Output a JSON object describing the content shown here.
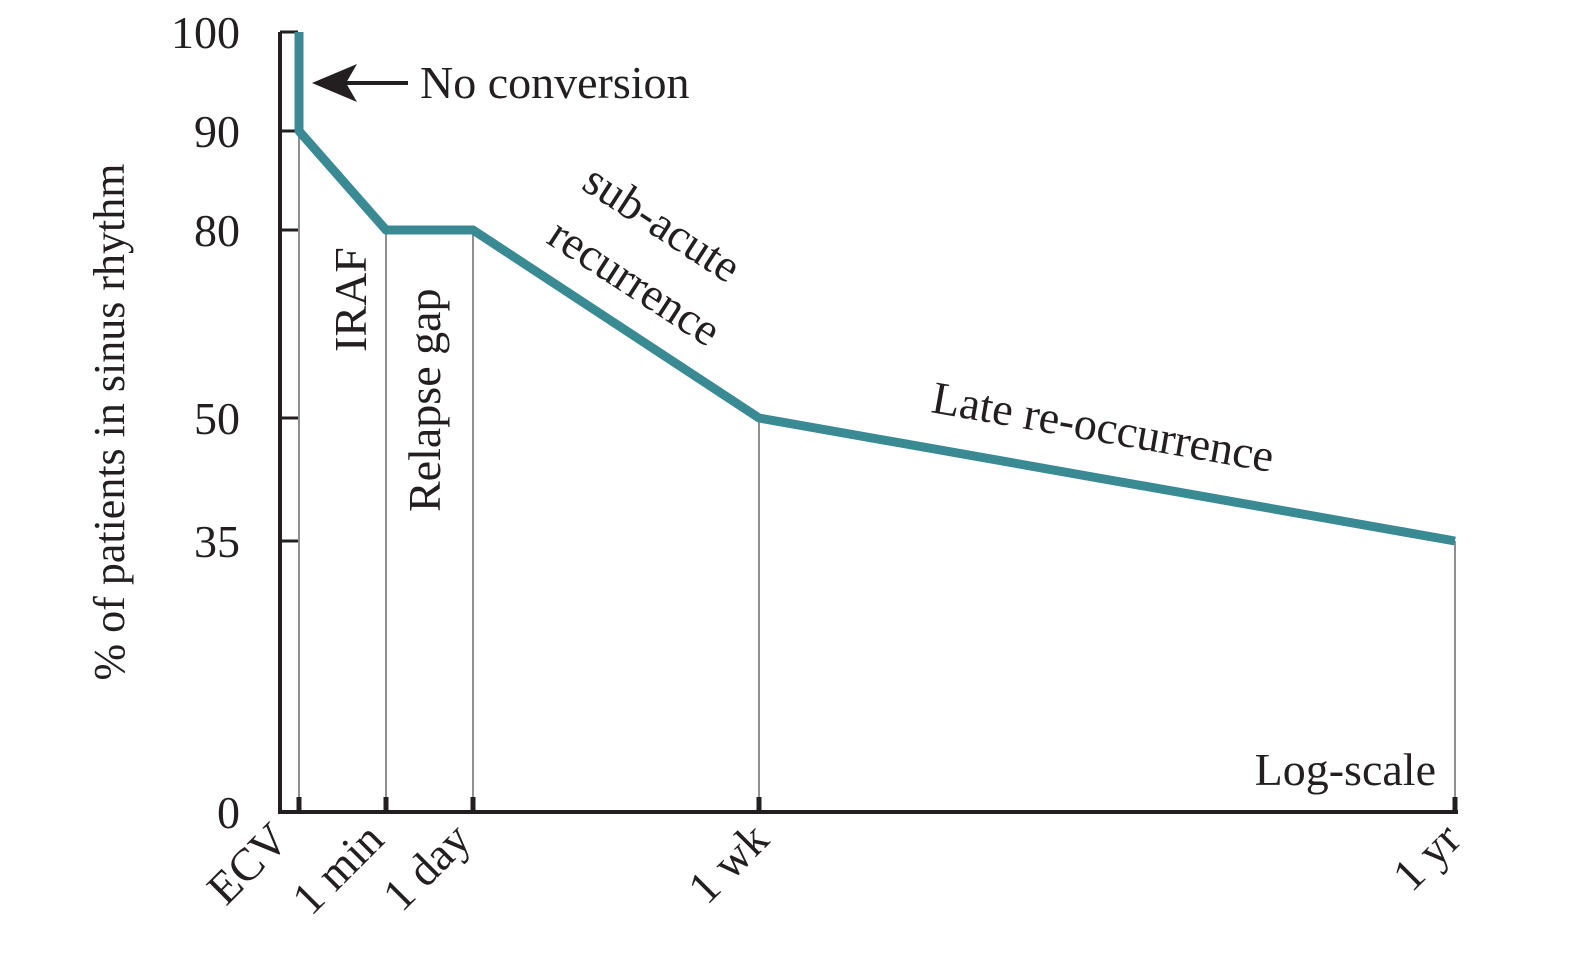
{
  "chart_data": {
    "type": "line",
    "title": "",
    "xlabel": "",
    "ylabel": "% of patients in sinus rhythm",
    "x_scale": "log",
    "x_scale_label": "Log-scale",
    "x_ticks": [
      "ECV",
      "1 min",
      "1 day",
      "1 wk",
      "1 yr"
    ],
    "y_ticks": [
      0,
      35,
      50,
      80,
      90,
      100
    ],
    "ylim": [
      0,
      100
    ],
    "grid": false,
    "legend": "none",
    "line_color": "#3a8a94",
    "series": [
      {
        "name": "",
        "points": [
          {
            "x": "ECV",
            "y": 100
          },
          {
            "x": "ECV",
            "y": 90
          },
          {
            "x": "1 min",
            "y": 80
          },
          {
            "x": "1 day",
            "y": 80
          },
          {
            "x": "1 wk",
            "y": 50
          },
          {
            "x": "1 yr",
            "y": 35
          }
        ]
      }
    ],
    "annotations": {
      "no_conversion": "No conversion",
      "iraf": "IRAF",
      "relapse_gap": "Relapse gap",
      "subacute_line1": "sub-acute",
      "subacute_line2": "recurrence",
      "late": "Late re-occurrence"
    }
  }
}
